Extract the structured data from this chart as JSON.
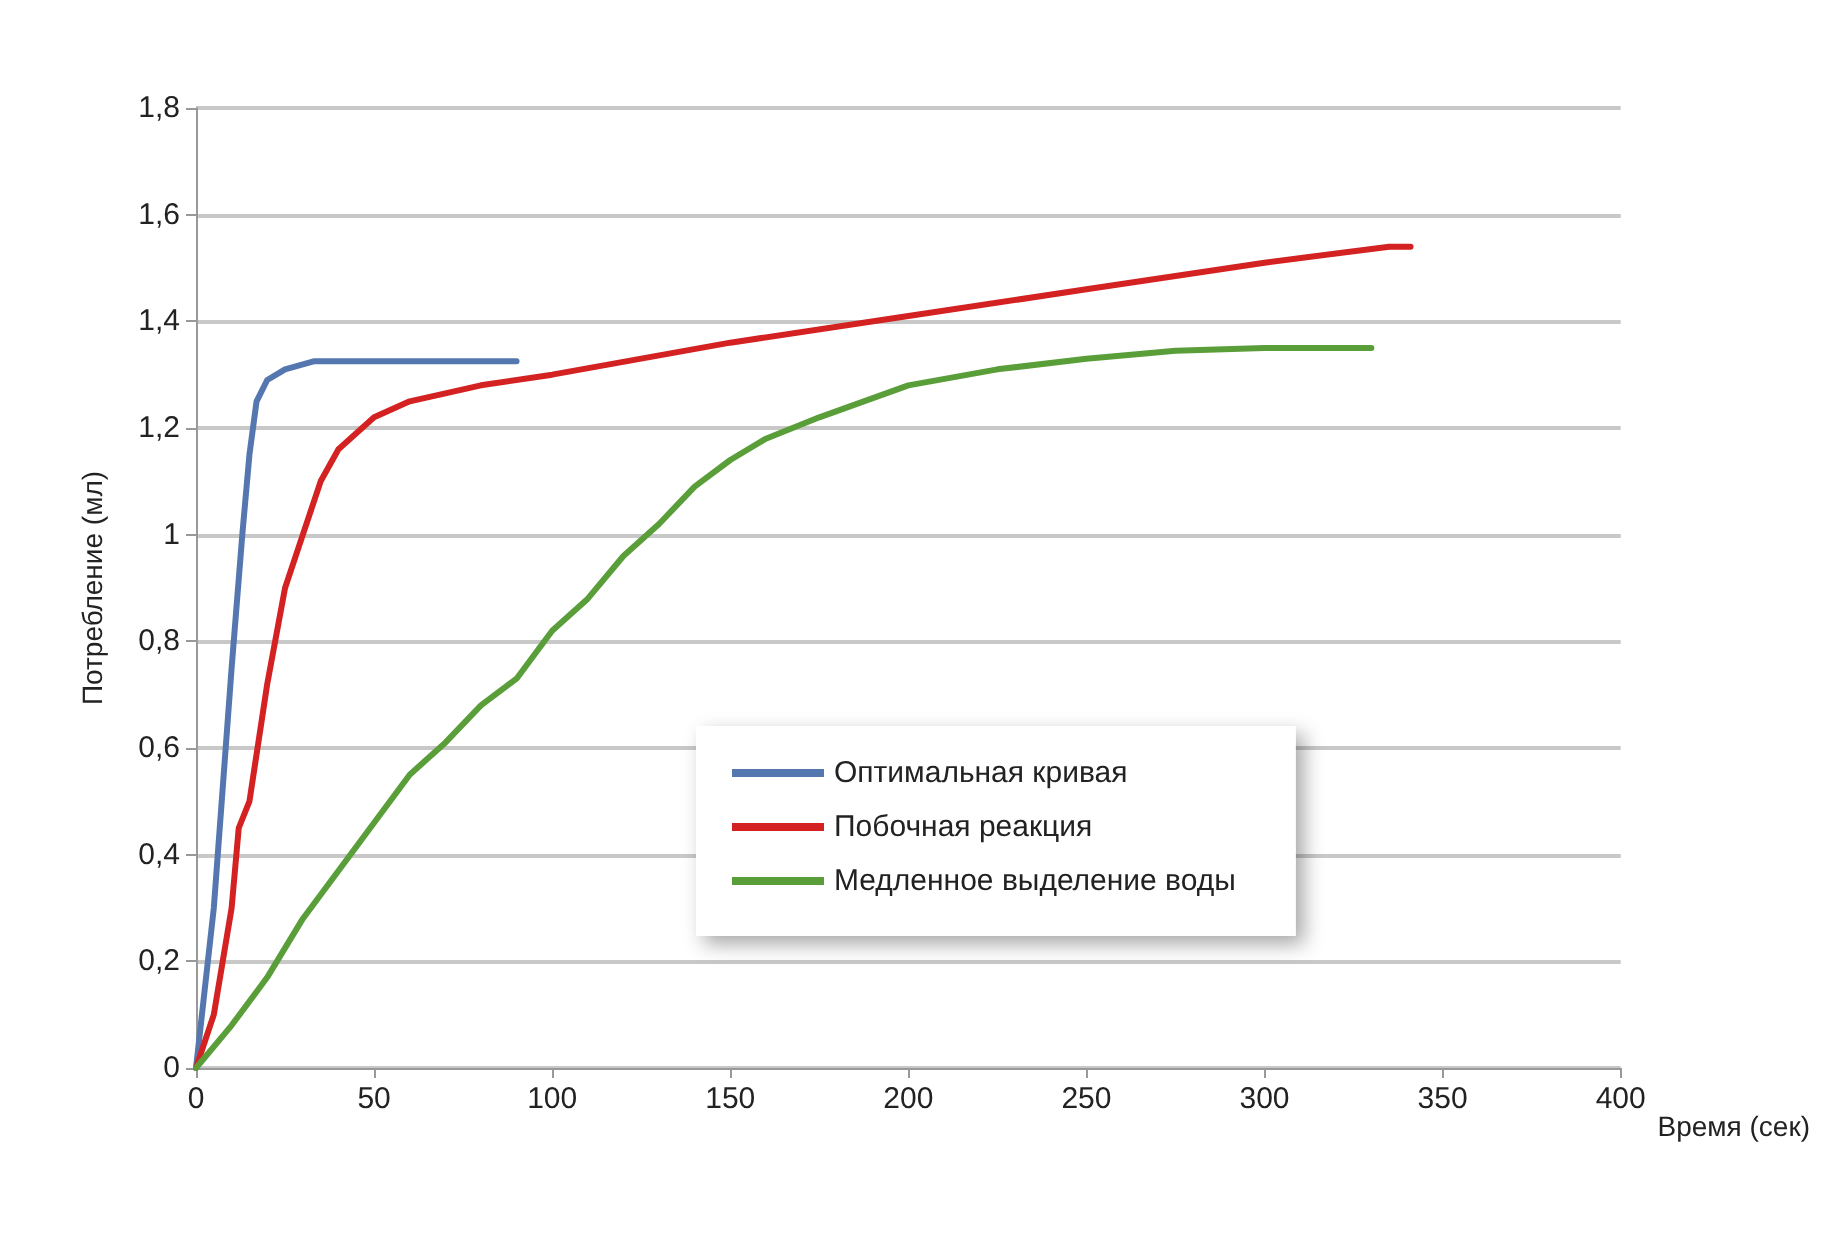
{
  "chart_data": {
    "type": "line",
    "xlabel": "Время (сек)",
    "ylabel": "Потребление (мл)",
    "xlim": [
      0,
      400
    ],
    "xticks": [
      0,
      50,
      100,
      150,
      200,
      250,
      300,
      350,
      400
    ],
    "ylim": [
      0,
      1.8
    ],
    "yticks": [
      0,
      {
        "value": 0.2,
        "label": "0,2"
      },
      {
        "value": 0.4,
        "label": "0,4"
      },
      {
        "value": 0.6,
        "label": "0,6"
      },
      {
        "value": 0.8,
        "label": "0,8"
      },
      1,
      {
        "value": 1.2,
        "label": "1,2"
      },
      {
        "value": 1.4,
        "label": "1,4"
      },
      {
        "value": 1.6,
        "label": "1,6"
      },
      {
        "value": 1.8,
        "label": "1,8"
      }
    ],
    "grid": "y",
    "legend": "center",
    "marker": "none",
    "line_style": "solid",
    "series": [
      {
        "name": "Оптимальная кривая",
        "color": "#5577b0",
        "x": [
          0,
          5,
          10,
          13,
          15,
          17,
          20,
          25,
          33,
          90
        ],
        "values": [
          0,
          0.3,
          0.75,
          1.0,
          1.15,
          1.25,
          1.29,
          1.31,
          1.325,
          1.325
        ]
      },
      {
        "name": "Побочная реакция",
        "color": "#d42222",
        "x": [
          0,
          5,
          10,
          12,
          15,
          20,
          25,
          30,
          35,
          40,
          50,
          60,
          80,
          100,
          150,
          200,
          250,
          300,
          335,
          341
        ],
        "values": [
          0,
          0.1,
          0.3,
          0.45,
          0.5,
          0.72,
          0.9,
          1.0,
          1.1,
          1.16,
          1.22,
          1.25,
          1.28,
          1.3,
          1.36,
          1.41,
          1.46,
          1.51,
          1.54,
          1.54
        ]
      },
      {
        "name": "Медленное выделение воды",
        "color": "#5a9e3a",
        "x": [
          0,
          10,
          20,
          30,
          40,
          50,
          60,
          70,
          80,
          90,
          100,
          110,
          120,
          130,
          140,
          150,
          160,
          175,
          200,
          225,
          250,
          275,
          300,
          330
        ],
        "values": [
          0,
          0.08,
          0.17,
          0.28,
          0.37,
          0.46,
          0.55,
          0.61,
          0.68,
          0.73,
          0.82,
          0.88,
          0.96,
          1.02,
          1.09,
          1.14,
          1.18,
          1.22,
          1.28,
          1.31,
          1.33,
          1.345,
          1.35,
          1.35
        ]
      }
    ]
  }
}
